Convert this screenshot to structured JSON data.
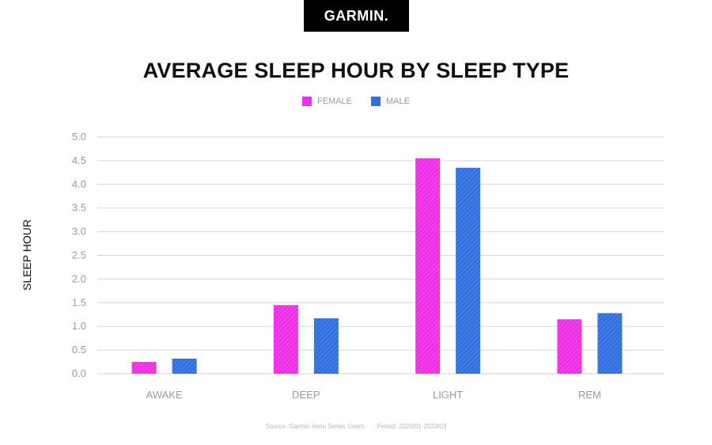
{
  "brand": {
    "logo_text": "GARMIN."
  },
  "colors": {
    "female": "#ee2ee6",
    "male": "#2f6fe0",
    "grid": "#d6d6d6",
    "tick": "#9a9a9a"
  },
  "footer": {
    "source": "Source: Garmin Venu Series Users",
    "period": "Period: 2020/01-2023/03"
  },
  "chart_data": {
    "type": "bar",
    "title": "AVERAGE SLEEP HOUR BY SLEEP TYPE",
    "ylabel": "SLEEP HOUR",
    "xlabel": "",
    "categories": [
      "AWAKE",
      "DEEP",
      "LIGHT",
      "REM"
    ],
    "series": [
      {
        "name": "FEMALE",
        "values": [
          0.25,
          1.45,
          4.55,
          1.15
        ]
      },
      {
        "name": "MALE",
        "values": [
          0.32,
          1.17,
          4.35,
          1.28
        ]
      }
    ],
    "ylim": [
      0,
      5
    ],
    "yticks": [
      "0.0",
      "0.5",
      "1.0",
      "1.5",
      "2.0",
      "2.5",
      "3.0",
      "3.5",
      "4.0",
      "4.5",
      "5.0"
    ],
    "grid": true,
    "legend": "top-center"
  }
}
